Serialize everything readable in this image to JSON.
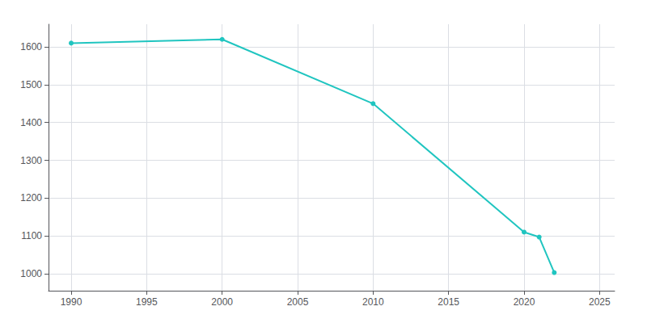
{
  "chart_data": {
    "type": "line",
    "x": [
      1990,
      2000,
      2010,
      2020,
      2021,
      2022
    ],
    "values": [
      1610,
      1620,
      1450,
      1110,
      1097,
      1003
    ],
    "color": "#20c5c0",
    "marker": "circle",
    "xlim": [
      1988.5,
      2026
    ],
    "ylim": [
      955,
      1660
    ],
    "xticks": [
      1990,
      1995,
      2000,
      2005,
      2010,
      2015,
      2020,
      2025
    ],
    "yticks": [
      1000,
      1100,
      1200,
      1300,
      1400,
      1500,
      1600
    ],
    "grid": true
  }
}
